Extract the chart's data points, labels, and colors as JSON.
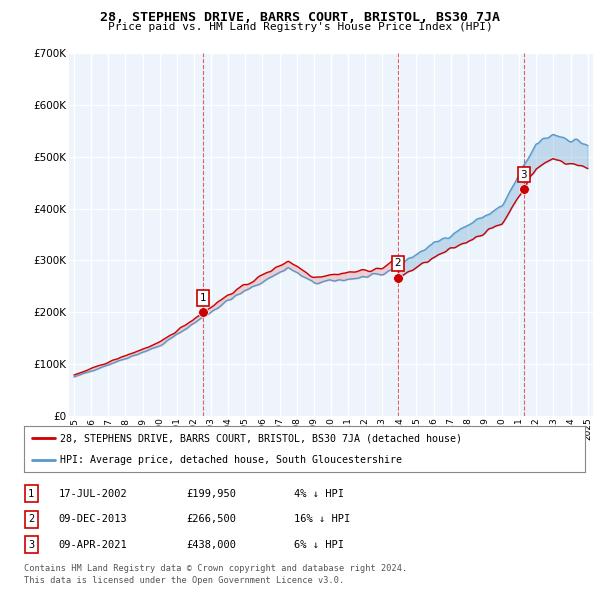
{
  "title": "28, STEPHENS DRIVE, BARRS COURT, BRISTOL, BS30 7JA",
  "subtitle": "Price paid vs. HM Land Registry's House Price Index (HPI)",
  "legend_line1": "28, STEPHENS DRIVE, BARRS COURT, BRISTOL, BS30 7JA (detached house)",
  "legend_line2": "HPI: Average price, detached house, South Gloucestershire",
  "footer_line1": "Contains HM Land Registry data © Crown copyright and database right 2024.",
  "footer_line2": "This data is licensed under the Open Government Licence v3.0.",
  "transactions": [
    {
      "label": "1",
      "date": "17-JUL-2002",
      "price": 199950,
      "pct": "4%",
      "dir": "↓",
      "x": 2002.54
    },
    {
      "label": "2",
      "date": "09-DEC-2013",
      "price": 266500,
      "pct": "16%",
      "dir": "↓",
      "x": 2013.92
    },
    {
      "label": "3",
      "date": "09-APR-2021",
      "price": 438000,
      "pct": "6%",
      "dir": "↓",
      "x": 2021.27
    }
  ],
  "price_color": "#cc0000",
  "hpi_color": "#5599cc",
  "vline_color": "#cc0000",
  "dot_color": "#cc0000",
  "background_color": "#ffffff",
  "chart_bg": "#eef4fb",
  "grid_color": "#cccccc",
  "ylim": [
    0,
    700000
  ],
  "yticks": [
    0,
    100000,
    200000,
    300000,
    400000,
    500000,
    600000,
    700000
  ],
  "xmin": 1994.7,
  "xmax": 2025.3
}
